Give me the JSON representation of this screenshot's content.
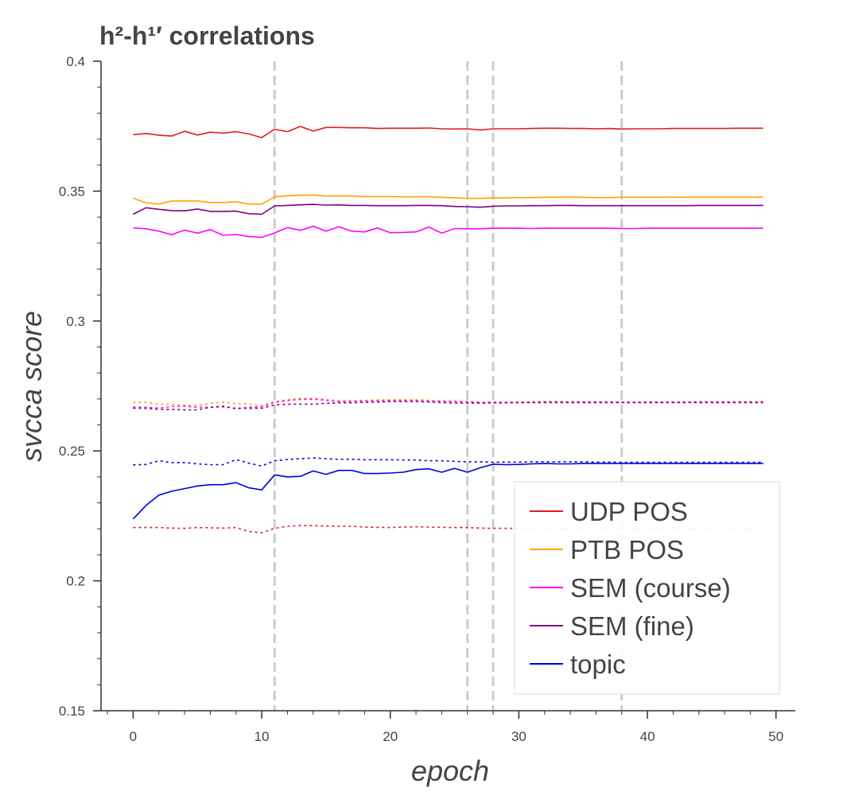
{
  "chart_data": {
    "type": "line",
    "title": "h²-h¹′ correlations",
    "xlabel": "epoch",
    "ylabel": "svcca score",
    "xlim": [
      -2.5,
      51.5
    ],
    "ylim": [
      0.15,
      0.4
    ],
    "xticks": [
      0,
      10,
      20,
      30,
      40,
      50
    ],
    "yticks": [
      0.15,
      0.2,
      0.25,
      0.3,
      0.35,
      0.4
    ],
    "ytick_labels": [
      "0.15",
      "0.2",
      "0.25",
      "0.3",
      "0.35",
      "0.4"
    ],
    "grid": false,
    "legend_position": "bottom-right",
    "vlines": [
      11,
      26,
      28,
      38
    ],
    "vline_color": "#cccccc",
    "x": [
      0,
      1,
      2,
      3,
      4,
      5,
      6,
      7,
      8,
      9,
      10,
      11,
      12,
      13,
      14,
      15,
      16,
      17,
      18,
      19,
      20,
      21,
      22,
      23,
      24,
      25,
      26,
      27,
      28,
      29,
      30,
      31,
      32,
      33,
      34,
      35,
      36,
      37,
      38,
      39,
      40,
      41,
      42,
      43,
      44,
      45,
      46,
      47,
      48,
      49
    ],
    "series": [
      {
        "name": "UDP POS",
        "color": "#e41a1c",
        "style": "solid",
        "values": [
          0.3717,
          0.3722,
          0.3715,
          0.3712,
          0.373,
          0.3716,
          0.3727,
          0.3723,
          0.3729,
          0.372,
          0.3706,
          0.3738,
          0.3729,
          0.3749,
          0.3731,
          0.3745,
          0.3745,
          0.3744,
          0.3744,
          0.3741,
          0.3742,
          0.3742,
          0.3742,
          0.3743,
          0.374,
          0.3739,
          0.374,
          0.3735,
          0.374,
          0.374,
          0.374,
          0.3741,
          0.3742,
          0.3742,
          0.3741,
          0.3741,
          0.374,
          0.3741,
          0.3739,
          0.374,
          0.374,
          0.374,
          0.3741,
          0.3741,
          0.3741,
          0.3741,
          0.3741,
          0.3742,
          0.3742,
          0.3742
        ]
      },
      {
        "name": "PTB POS",
        "color": "#ffa500",
        "style": "solid",
        "values": [
          0.3473,
          0.3455,
          0.345,
          0.3462,
          0.3462,
          0.3462,
          0.3456,
          0.3456,
          0.3459,
          0.345,
          0.345,
          0.3478,
          0.3482,
          0.3484,
          0.3485,
          0.3481,
          0.3481,
          0.3481,
          0.3479,
          0.3479,
          0.3479,
          0.3478,
          0.3478,
          0.3478,
          0.3476,
          0.3474,
          0.3472,
          0.3472,
          0.3474,
          0.3474,
          0.3475,
          0.3475,
          0.3476,
          0.3476,
          0.3476,
          0.3476,
          0.3475,
          0.3475,
          0.3476,
          0.3476,
          0.3476,
          0.3476,
          0.3477,
          0.3477,
          0.3477,
          0.3477,
          0.3477,
          0.3477,
          0.3477,
          0.3477
        ]
      },
      {
        "name": "SEM (course)",
        "color": "#ff00ff",
        "style": "solid",
        "values": [
          0.3359,
          0.3355,
          0.3346,
          0.3332,
          0.335,
          0.3338,
          0.3352,
          0.333,
          0.3333,
          0.3325,
          0.3322,
          0.3339,
          0.336,
          0.3349,
          0.3365,
          0.3346,
          0.3363,
          0.3346,
          0.3343,
          0.3358,
          0.334,
          0.3341,
          0.3343,
          0.3362,
          0.3338,
          0.3356,
          0.3355,
          0.3355,
          0.3357,
          0.3357,
          0.3357,
          0.3356,
          0.3357,
          0.3357,
          0.3357,
          0.3357,
          0.3357,
          0.3357,
          0.3356,
          0.3356,
          0.3357,
          0.3357,
          0.3357,
          0.3357,
          0.3357,
          0.3357,
          0.3357,
          0.3357,
          0.3357,
          0.3357
        ]
      },
      {
        "name": "SEM (fine)",
        "color": "#800080",
        "style": "solid",
        "values": [
          0.3411,
          0.3436,
          0.343,
          0.3425,
          0.3424,
          0.3431,
          0.3422,
          0.3422,
          0.3423,
          0.3413,
          0.3411,
          0.3443,
          0.3445,
          0.3447,
          0.3449,
          0.3446,
          0.3447,
          0.3445,
          0.3445,
          0.3444,
          0.3444,
          0.3444,
          0.3445,
          0.3445,
          0.3444,
          0.3441,
          0.344,
          0.3438,
          0.3442,
          0.3443,
          0.3443,
          0.3444,
          0.3444,
          0.3445,
          0.3445,
          0.3444,
          0.3444,
          0.3444,
          0.3444,
          0.3444,
          0.3444,
          0.3444,
          0.3444,
          0.3444,
          0.3445,
          0.3445,
          0.3445,
          0.3445,
          0.3445,
          0.3445
        ]
      },
      {
        "name": "topic",
        "color": "#0000dd",
        "style": "solid",
        "values": [
          0.2238,
          0.229,
          0.233,
          0.2345,
          0.2355,
          0.2365,
          0.237,
          0.237,
          0.2378,
          0.2358,
          0.235,
          0.2408,
          0.24,
          0.2402,
          0.2423,
          0.241,
          0.2425,
          0.2425,
          0.2413,
          0.2413,
          0.2415,
          0.2418,
          0.2428,
          0.2431,
          0.2418,
          0.2433,
          0.2418,
          0.2435,
          0.2449,
          0.2447,
          0.2448,
          0.245,
          0.2452,
          0.245,
          0.245,
          0.2452,
          0.2452,
          0.2452,
          0.2452,
          0.2452,
          0.2452,
          0.2452,
          0.2452,
          0.2452,
          0.2452,
          0.2452,
          0.2452,
          0.2452,
          0.2452,
          0.2452
        ]
      },
      {
        "color": "#e41a1c",
        "style": "dotted",
        "values": [
          0.2205,
          0.2205,
          0.2205,
          0.2203,
          0.2202,
          0.2205,
          0.2204,
          0.2203,
          0.2205,
          0.219,
          0.2185,
          0.2202,
          0.221,
          0.2213,
          0.2212,
          0.2211,
          0.221,
          0.221,
          0.2207,
          0.2206,
          0.2205,
          0.2207,
          0.2208,
          0.2207,
          0.2206,
          0.2205,
          0.2205,
          0.2203,
          0.2202,
          0.2202,
          0.2202,
          0.2202,
          0.2202,
          0.2202,
          0.2202,
          0.2202,
          0.2202,
          0.2202,
          0.2202,
          0.2202,
          0.2202,
          0.2202,
          0.2202,
          0.2202,
          0.2202,
          0.2202,
          0.2202,
          0.2202,
          0.2202,
          0.2202
        ]
      },
      {
        "color": "#ffa500",
        "style": "dotted",
        "values": [
          0.2687,
          0.2687,
          0.268,
          0.268,
          0.2676,
          0.2675,
          0.2683,
          0.2688,
          0.2682,
          0.268,
          0.2675,
          0.269,
          0.2697,
          0.2703,
          0.2703,
          0.2697,
          0.2693,
          0.2693,
          0.2695,
          0.2696,
          0.2697,
          0.2697,
          0.2697,
          0.2695,
          0.2693,
          0.2692,
          0.2692,
          0.2688,
          0.2688,
          0.2688,
          0.2688,
          0.269,
          0.2691,
          0.2691,
          0.269,
          0.269,
          0.269,
          0.269,
          0.2688,
          0.2688,
          0.2689,
          0.2689,
          0.2689,
          0.2689,
          0.269,
          0.269,
          0.269,
          0.269,
          0.269,
          0.269
        ]
      },
      {
        "color": "#ff00ff",
        "style": "dotted",
        "values": [
          0.2669,
          0.2668,
          0.2665,
          0.2671,
          0.2672,
          0.2668,
          0.2668,
          0.2673,
          0.2662,
          0.2668,
          0.267,
          0.2687,
          0.2694,
          0.2698,
          0.2699,
          0.2695,
          0.269,
          0.269,
          0.2692,
          0.2693,
          0.2693,
          0.2693,
          0.2693,
          0.2692,
          0.269,
          0.269,
          0.2688,
          0.2686,
          0.2686,
          0.2686,
          0.2686,
          0.2687,
          0.2688,
          0.2688,
          0.2688,
          0.2688,
          0.2688,
          0.2688,
          0.2687,
          0.2687,
          0.2688,
          0.2688,
          0.2688,
          0.2688,
          0.2688,
          0.2688,
          0.2688,
          0.2688,
          0.2688,
          0.2688
        ]
      },
      {
        "color": "#800080",
        "style": "dotted",
        "values": [
          0.2664,
          0.2664,
          0.266,
          0.266,
          0.2658,
          0.2658,
          0.2668,
          0.267,
          0.2664,
          0.2664,
          0.2664,
          0.2677,
          0.268,
          0.268,
          0.268,
          0.2683,
          0.2685,
          0.2685,
          0.2687,
          0.2688,
          0.269,
          0.269,
          0.269,
          0.2688,
          0.2686,
          0.2684,
          0.2684,
          0.2684,
          0.2685,
          0.2685,
          0.2686,
          0.2686,
          0.2686,
          0.2686,
          0.2686,
          0.2686,
          0.2686,
          0.2686,
          0.2686,
          0.2686,
          0.2686,
          0.2686,
          0.2686,
          0.2686,
          0.2686,
          0.2686,
          0.2686,
          0.2686,
          0.2686,
          0.2686
        ]
      },
      {
        "color": "#0000dd",
        "style": "dotted",
        "values": [
          0.2446,
          0.2448,
          0.2462,
          0.2455,
          0.2455,
          0.245,
          0.2447,
          0.2447,
          0.2467,
          0.2453,
          0.2442,
          0.2462,
          0.2467,
          0.247,
          0.2473,
          0.247,
          0.2468,
          0.2468,
          0.2466,
          0.2466,
          0.2466,
          0.2465,
          0.2465,
          0.2462,
          0.2462,
          0.246,
          0.2458,
          0.2458,
          0.2457,
          0.2457,
          0.2457,
          0.2458,
          0.2458,
          0.2458,
          0.2458,
          0.2458,
          0.2457,
          0.2457,
          0.2456,
          0.2456,
          0.2456,
          0.2456,
          0.2456,
          0.2456,
          0.2456,
          0.2456,
          0.2456,
          0.2456,
          0.2456,
          0.2456
        ]
      }
    ]
  }
}
